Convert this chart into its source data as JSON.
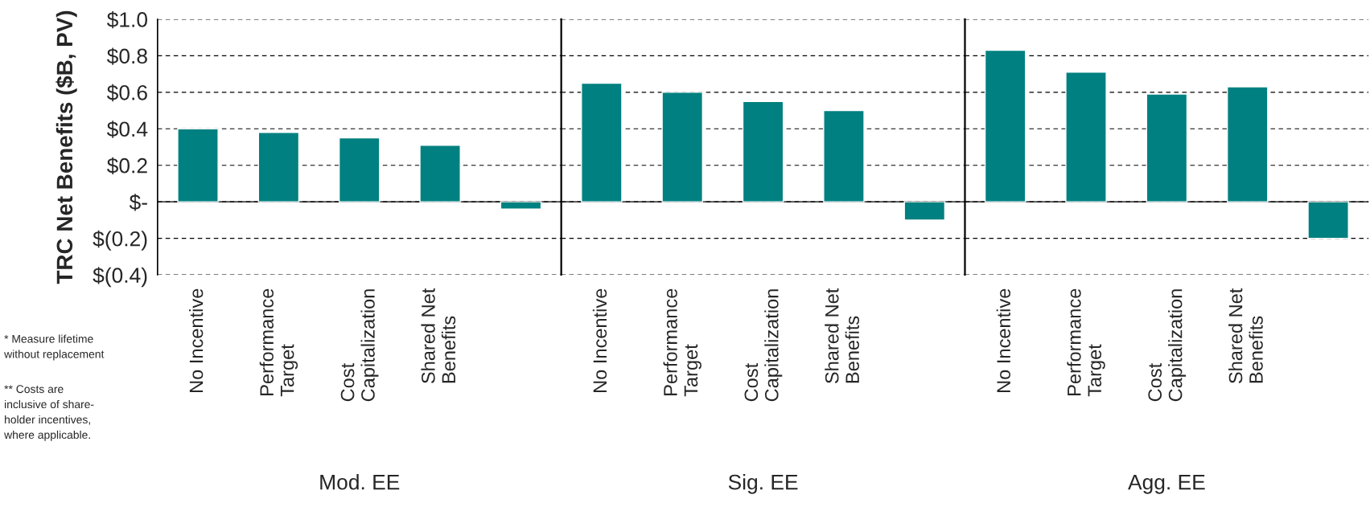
{
  "chart_data": [
    {
      "type": "bar",
      "ylabel": "TRC Net Benefits ($B, PV)",
      "xlabel": "Mod. EE",
      "categories": [
        "No Incentive",
        "Performance\nTarget",
        "Cost\nCapitalization",
        "Shared Net\nBenefits",
        null
      ],
      "values": [
        0.4,
        0.38,
        0.35,
        0.31,
        -0.04
      ],
      "color": "#008080",
      "ylim": [
        -0.4,
        1.0
      ],
      "yticks": [
        {
          "value": 1.0,
          "label": "$1.0"
        },
        {
          "value": 0.8,
          "label": "$0.8"
        },
        {
          "value": 0.6,
          "label": "$0.6"
        },
        {
          "value": 0.4,
          "label": "$0.4"
        },
        {
          "value": 0.2,
          "label": "$0.2"
        },
        {
          "value": 0,
          "label": "$-"
        },
        {
          "value": -0.2,
          "label": "$(0.2)"
        },
        {
          "value": -0.4,
          "label": "$(0.4)"
        }
      ],
      "grid": "y",
      "annotations": [
        "* Measure lifetime\nwithout replacement",
        "** Costs are\ninclusive of share-\nholder incentives,\nwhere applicable."
      ]
    },
    {
      "type": "bar",
      "xlabel": "Sig. EE",
      "categories": [
        "No Incentive",
        "Performance\nTarget",
        "Cost\nCapitalization",
        "Shared Net\nBenefits",
        null
      ],
      "values": [
        0.65,
        0.6,
        0.55,
        0.5,
        -0.1
      ],
      "color": "#008080",
      "ylim": [
        -0.4,
        1.0
      ],
      "yticks": [
        {
          "value": 1.0,
          "label": null
        },
        {
          "value": 0.8,
          "label": null
        },
        {
          "value": 0.6,
          "label": null
        },
        {
          "value": 0.4,
          "label": null
        },
        {
          "value": 0.2,
          "label": null
        },
        {
          "value": 0,
          "label": null
        },
        {
          "value": -0.2,
          "label": null
        },
        {
          "value": -0.4,
          "label": null
        }
      ],
      "grid": "y",
      "tick_labels": "x"
    },
    {
      "type": "bar",
      "xlabel": "Agg. EE",
      "categories": [
        "No Incentive",
        "Performance\nTarget",
        "Cost\nCapitalization",
        "Shared Net\nBenefits",
        null
      ],
      "values": [
        0.83,
        0.71,
        0.59,
        0.63,
        -0.2
      ],
      "color": "#008080",
      "ylim": [
        -0.4,
        1.0
      ],
      "yticks": [
        {
          "value": 1.0,
          "label": null
        },
        {
          "value": 0.8,
          "label": null
        },
        {
          "value": 0.6,
          "label": null
        },
        {
          "value": 0.4,
          "label": null
        },
        {
          "value": 0.2,
          "label": null
        },
        {
          "value": 0,
          "label": null
        },
        {
          "value": -0.2,
          "label": null
        },
        {
          "value": -0.4,
          "label": null
        }
      ],
      "grid": "y",
      "tick_labels": "x"
    }
  ]
}
